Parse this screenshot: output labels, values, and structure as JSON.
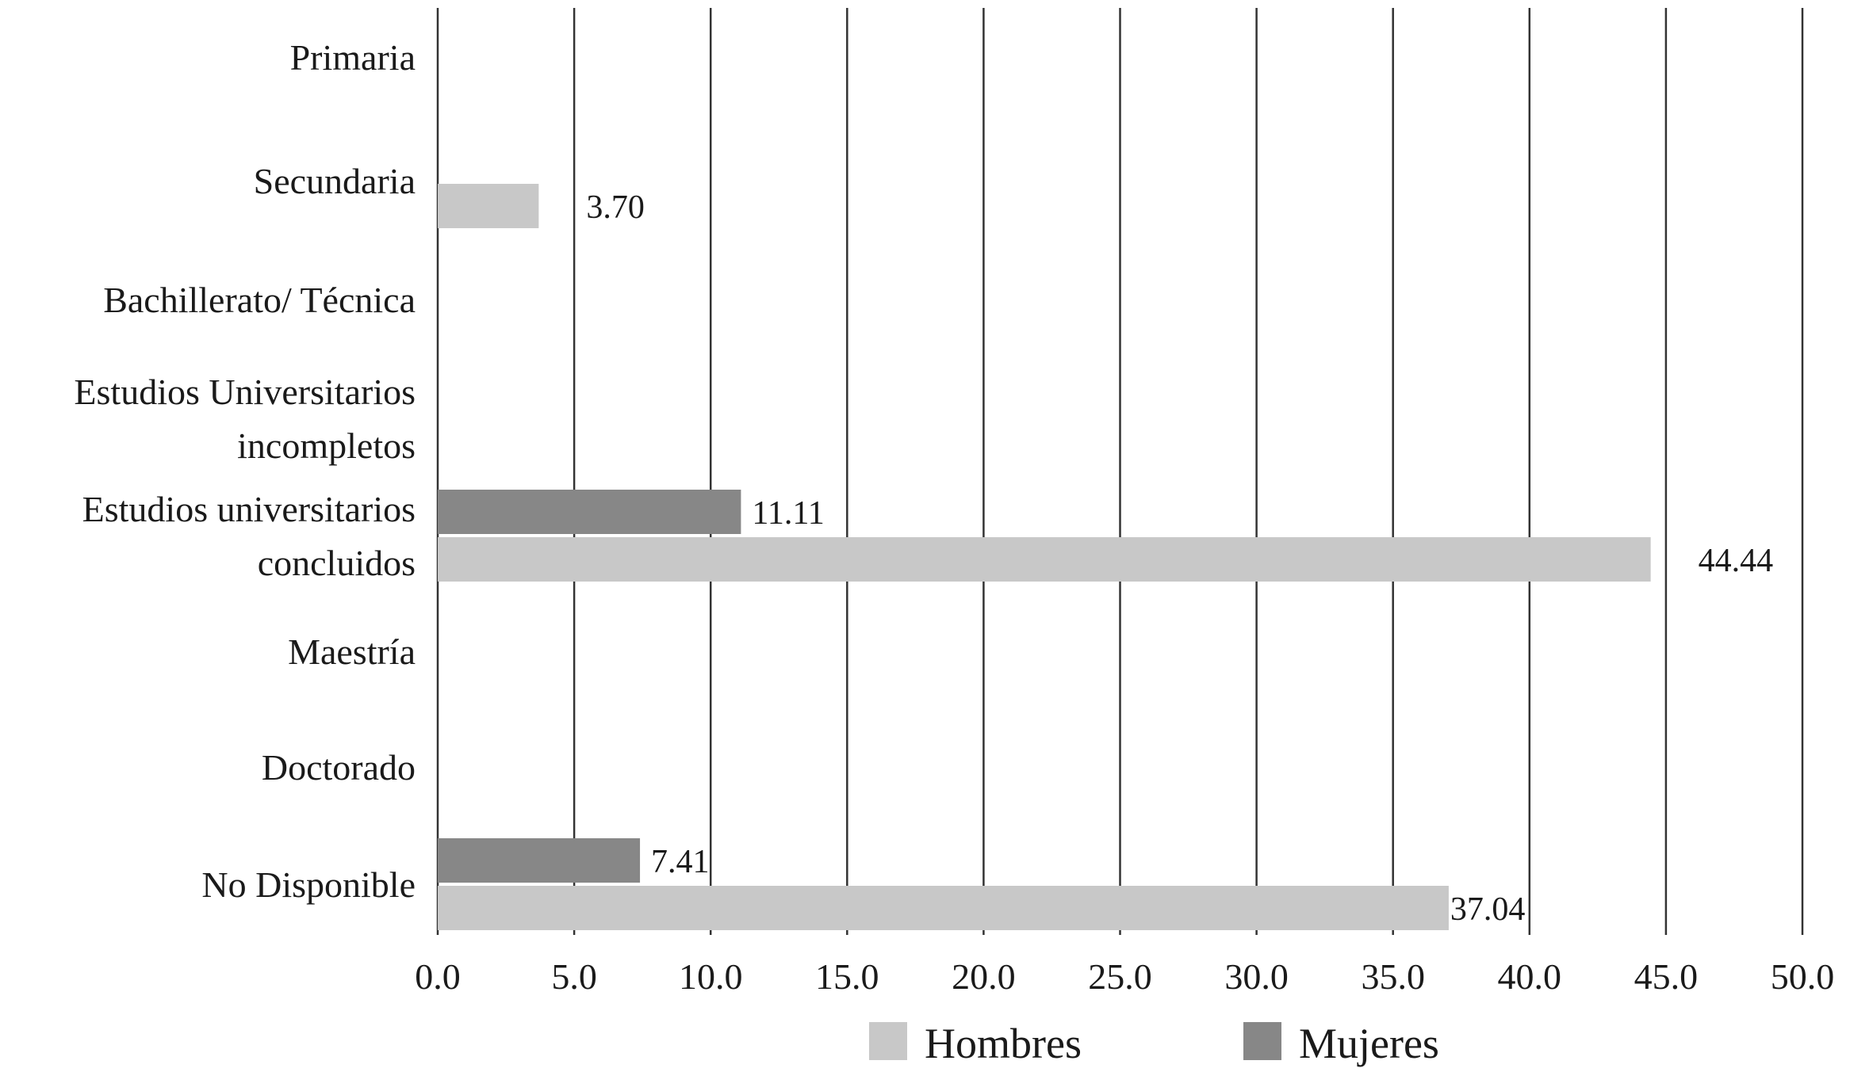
{
  "chart_data": {
    "type": "bar",
    "orientation": "horizontal",
    "categories": [
      [
        "Primaria"
      ],
      [
        "Secundaria"
      ],
      [
        "Bachillerato/ Técnica"
      ],
      [
        "Estudios Universitarios",
        "incompletos"
      ],
      [
        "Estudios universitarios",
        "concluidos"
      ],
      [
        "Maestría"
      ],
      [
        "Doctorado"
      ],
      [
        "No Disponible"
      ]
    ],
    "series": [
      {
        "name": "Hombres",
        "color": "#c8c8c8",
        "values": [
          null,
          3.7,
          null,
          null,
          44.44,
          null,
          null,
          37.04
        ],
        "labels": [
          "",
          "3.70",
          "",
          "",
          "44.44",
          "",
          "",
          "37.04"
        ]
      },
      {
        "name": "Mujeres",
        "color": "#878787",
        "values": [
          null,
          null,
          null,
          null,
          11.11,
          null,
          null,
          7.41
        ],
        "labels": [
          "",
          "",
          "",
          "",
          "11.11",
          "",
          "",
          "7.41"
        ]
      }
    ],
    "xlim": [
      0,
      50
    ],
    "xticks": [
      "0.0",
      "5.0",
      "10.0",
      "15.0",
      "20.0",
      "25.0",
      "30.0",
      "35.0",
      "40.0",
      "45.0",
      "50.0"
    ],
    "grid": true,
    "legend_position": "bottom"
  }
}
